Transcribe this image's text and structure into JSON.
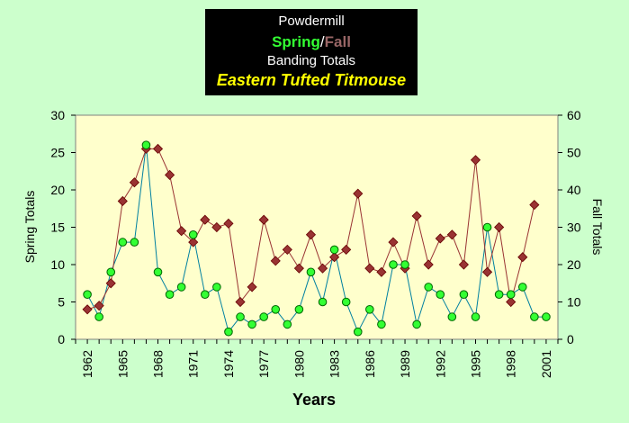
{
  "title": {
    "line1": "Powdermill",
    "spring_word": "Spring",
    "separator": "/",
    "fall_word": "Fall",
    "line3": "Banding Totals",
    "line4": "Eastern Tufted Titmouse"
  },
  "colors": {
    "background": "#ccffcc",
    "plot_area": "#ffffcc",
    "spring": "#33ff33",
    "fall": "#993333",
    "fall_label": "#996666",
    "title_box": "#000000",
    "species": "#ffff00"
  },
  "chart_data": {
    "type": "line",
    "xlabel": "Years",
    "ylabel_left": "Spring Totals",
    "ylabel_right": "Fall Totals",
    "xlim": [
      1961,
      2002
    ],
    "ylim_left": [
      0,
      30
    ],
    "ylim_right": [
      0,
      60
    ],
    "yticks_left": [
      0,
      5,
      10,
      15,
      20,
      25,
      30
    ],
    "yticks_right": [
      0,
      10,
      20,
      30,
      40,
      50,
      60
    ],
    "xtick_labels": [
      "1962",
      "1965",
      "1968",
      "1971",
      "1974",
      "1977",
      "1980",
      "1983",
      "1986",
      "1989",
      "1992",
      "1995",
      "1998",
      "2001"
    ],
    "x": [
      1962,
      1963,
      1964,
      1965,
      1966,
      1967,
      1968,
      1969,
      1970,
      1971,
      1972,
      1973,
      1974,
      1975,
      1976,
      1977,
      1978,
      1979,
      1980,
      1981,
      1982,
      1983,
      1984,
      1985,
      1986,
      1987,
      1988,
      1989,
      1990,
      1991,
      1992,
      1993,
      1994,
      1995,
      1996,
      1997,
      1998,
      1999,
      2000,
      2001
    ],
    "grid": false,
    "series": [
      {
        "name": "Spring",
        "axis": "left",
        "values": [
          6,
          3,
          9,
          13,
          13,
          26,
          9,
          6,
          7,
          14,
          6,
          7,
          1,
          3,
          2,
          3,
          4,
          2,
          4,
          9,
          5,
          12,
          5,
          1,
          4,
          2,
          10,
          10,
          2,
          7,
          6,
          3,
          6,
          3,
          15,
          6,
          6,
          7,
          3,
          3
        ]
      },
      {
        "name": "Fall",
        "axis": "right",
        "values": [
          8,
          9,
          15,
          37,
          42,
          51,
          51,
          44,
          29,
          26,
          32,
          30,
          31,
          10,
          14,
          32,
          21,
          24,
          19,
          28,
          19,
          22,
          24,
          39,
          19,
          18,
          26,
          19,
          33,
          20,
          27,
          28,
          20,
          48,
          18,
          30,
          10,
          22,
          36,
          null
        ]
      }
    ]
  }
}
